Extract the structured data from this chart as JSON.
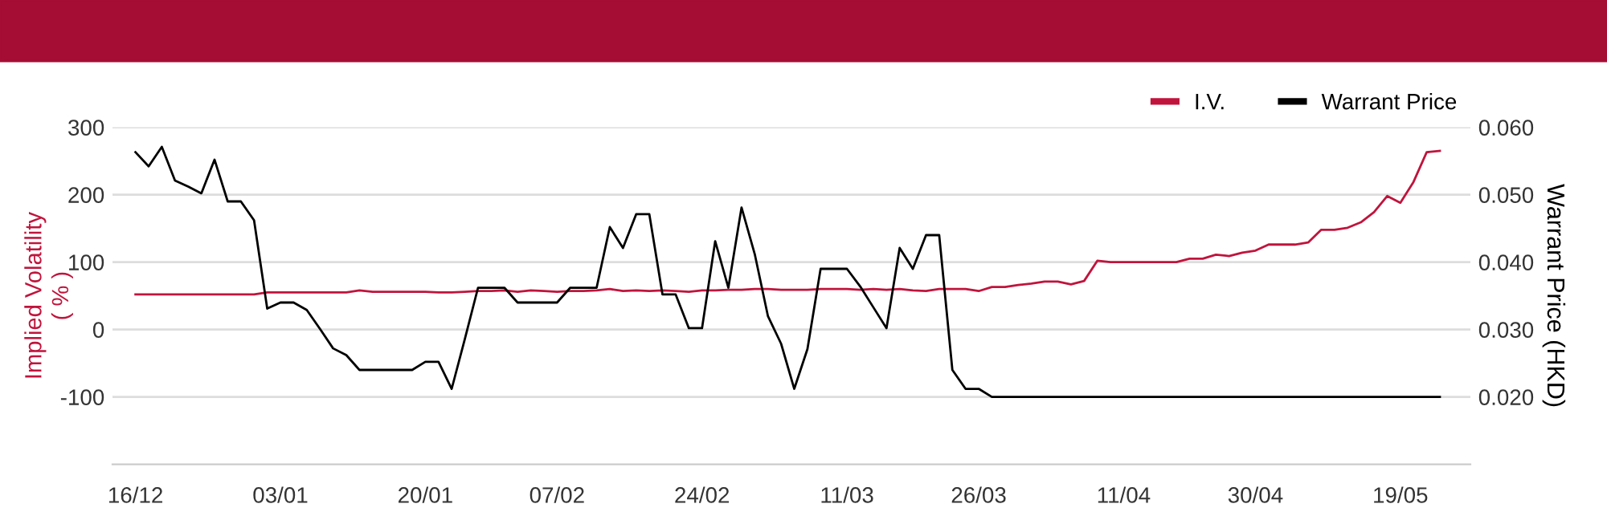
{
  "chart_data": {
    "type": "line",
    "categories": [
      "16/12",
      null,
      null,
      null,
      null,
      null,
      null,
      null,
      null,
      null,
      null,
      "03/01",
      null,
      null,
      null,
      null,
      null,
      null,
      null,
      null,
      null,
      null,
      "20/01",
      null,
      null,
      null,
      null,
      null,
      null,
      null,
      null,
      null,
      "07/02",
      null,
      null,
      null,
      null,
      null,
      null,
      null,
      null,
      null,
      null,
      "24/02",
      null,
      null,
      null,
      null,
      null,
      null,
      null,
      null,
      null,
      null,
      "11/03",
      null,
      null,
      null,
      null,
      null,
      null,
      null,
      null,
      null,
      "26/03",
      null,
      null,
      null,
      null,
      null,
      null,
      null,
      null,
      null,
      null,
      "11/04",
      null,
      null,
      null,
      null,
      null,
      null,
      null,
      null,
      null,
      "30/04",
      null,
      null,
      null,
      null,
      null,
      null,
      null,
      null,
      null,
      null,
      "19/05",
      null,
      null,
      null
    ],
    "series": [
      {
        "name": "I.V.",
        "color": "#c0143c",
        "values": [
          52,
          52,
          52,
          52,
          52,
          52,
          52,
          52,
          52,
          52,
          55,
          55,
          55,
          55,
          55,
          55,
          55,
          58,
          56,
          56,
          56,
          56,
          56,
          55,
          55,
          56,
          57,
          57,
          58,
          56,
          58,
          57,
          56,
          57,
          57,
          58,
          60,
          57,
          58,
          57,
          58,
          57,
          56,
          58,
          58,
          59,
          59,
          60,
          60,
          59,
          59,
          59,
          60,
          60,
          60,
          59,
          60,
          59,
          60,
          58,
          57,
          60,
          60,
          60,
          57,
          63,
          63,
          66,
          68,
          71,
          71,
          67,
          72,
          102,
          100,
          100,
          100,
          100,
          100,
          100,
          105,
          105,
          111,
          109,
          114,
          117,
          126,
          126,
          126,
          129,
          148,
          148,
          151,
          159,
          174,
          198,
          188,
          219,
          263,
          265
        ]
      },
      {
        "name": "Warrant Price",
        "color": "#000000",
        "axis": "y2",
        "values": [
          0.0563,
          0.0542,
          0.0571,
          0.0521,
          0.0512,
          0.0502,
          0.0552,
          0.049,
          0.049,
          0.0462,
          0.0331,
          0.034,
          0.034,
          0.0329,
          0.0301,
          0.0272,
          0.0262,
          0.024,
          0.024,
          0.024,
          0.024,
          0.024,
          0.0252,
          0.0252,
          0.0212,
          0.0286,
          0.0362,
          0.0362,
          0.0362,
          0.034,
          0.034,
          0.034,
          0.034,
          0.0362,
          0.0362,
          0.0362,
          0.0452,
          0.0421,
          0.0471,
          0.0471,
          0.0352,
          0.0352,
          0.0302,
          0.0302,
          0.0431,
          0.0362,
          0.0481,
          0.0412,
          0.032,
          0.0279,
          0.0212,
          0.0271,
          0.039,
          0.039,
          0.039,
          0.0364,
          0.0333,
          0.0302,
          0.0421,
          0.039,
          0.044,
          0.044,
          0.024,
          0.0212,
          0.0212,
          0.02,
          0.02,
          0.02,
          0.02,
          0.02,
          0.02,
          0.02,
          0.02,
          0.02,
          0.02,
          0.02,
          0.02,
          0.02,
          0.02,
          0.02,
          0.02,
          0.02,
          0.02,
          0.02,
          0.02,
          0.02,
          0.02,
          0.02,
          0.02,
          0.02,
          0.02,
          0.02,
          0.02,
          0.02,
          0.02,
          0.02,
          0.02,
          0.02,
          0.02,
          0.02
        ]
      }
    ],
    "ylabel": "Implied Volatility\n( % )",
    "y2label": "Warrant Price (HKD)",
    "ylim": [
      -200,
      300
    ],
    "yticks": [
      -100,
      0,
      100,
      200,
      300
    ],
    "y2lim": [
      0.01,
      0.06
    ],
    "y2ticks": [
      {
        "value": 0.02,
        "label": "0.020"
      },
      {
        "value": 0.03,
        "label": "0.030"
      },
      {
        "value": 0.04,
        "label": "0.040"
      },
      {
        "value": 0.05,
        "label": "0.050"
      },
      {
        "value": 0.06,
        "label": "0.060"
      }
    ],
    "grid": "y",
    "legend": "top right",
    "marker": "none",
    "line_style": "solid"
  }
}
